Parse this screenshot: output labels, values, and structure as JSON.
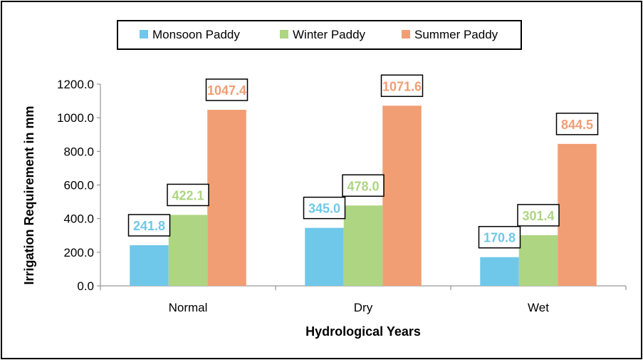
{
  "chart_data": {
    "type": "bar",
    "categories": [
      "Normal",
      "Dry",
      "Wet"
    ],
    "series": [
      {
        "name": "Monsoon Paddy",
        "values": [
          241.8,
          345.0,
          170.8
        ],
        "color": "#6FC8EA"
      },
      {
        "name": "Winter Paddy",
        "values": [
          422.1,
          478.0,
          301.4
        ],
        "color": "#AED582"
      },
      {
        "name": "Summer Paddy",
        "values": [
          1047.4,
          1071.6,
          844.5
        ],
        "color": "#F19E74"
      }
    ],
    "value_labels": [
      [
        "241.8",
        "345.0",
        "170.8"
      ],
      [
        "422.1",
        "478.0",
        "301.4"
      ],
      [
        "1047.4",
        "1071.6",
        "844.5"
      ]
    ],
    "yticks": [
      "0.0",
      "200.0",
      "400.0",
      "600.0",
      "800.0",
      "1000.0",
      "1200.0"
    ],
    "ylim": [
      0,
      1200
    ],
    "xlabel": "Hydrological Years",
    "ylabel": "Irrigation Requirement in mm",
    "legend_position": "top-center",
    "grid": false
  }
}
